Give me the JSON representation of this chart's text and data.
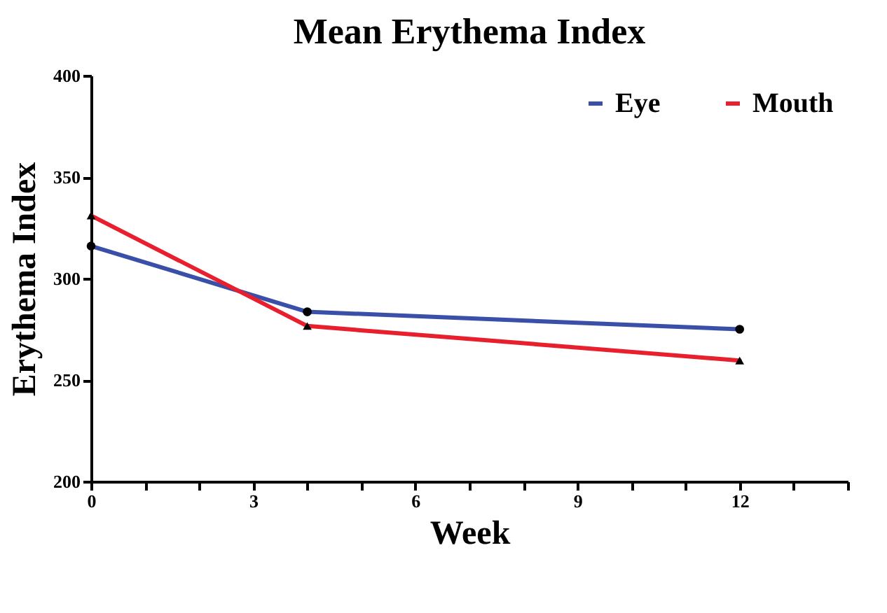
{
  "chart_data": {
    "type": "line",
    "title": "Mean Erythema Index",
    "xlabel": "Week",
    "ylabel": "Erythema Index",
    "x": [
      0,
      4,
      12
    ],
    "series": [
      {
        "name": "Eye",
        "color": "#3a4fa8",
        "marker": "circle",
        "values": [
          316,
          283.6,
          275
        ]
      },
      {
        "name": "Mouth",
        "color": "#e8202e",
        "marker": "triangle",
        "values": [
          331,
          276.6,
          259.6
        ]
      }
    ],
    "xlim": [
      0,
      14
    ],
    "xticks": [
      0,
      {
        "value": 1,
        "label": null
      },
      {
        "value": 2,
        "label": null
      },
      3,
      {
        "value": 4,
        "label": null
      },
      {
        "value": 5,
        "label": null
      },
      6,
      {
        "value": 7,
        "label": null
      },
      {
        "value": 8,
        "label": null
      },
      9,
      {
        "value": 10,
        "label": null
      },
      {
        "value": 11,
        "label": null
      },
      12,
      {
        "value": 13,
        "label": null
      },
      {
        "value": 14,
        "label": null
      }
    ],
    "ylim": [
      200,
      400
    ],
    "yticks": [
      200,
      250,
      300,
      350,
      400
    ],
    "grid": false,
    "legend": "top right"
  }
}
